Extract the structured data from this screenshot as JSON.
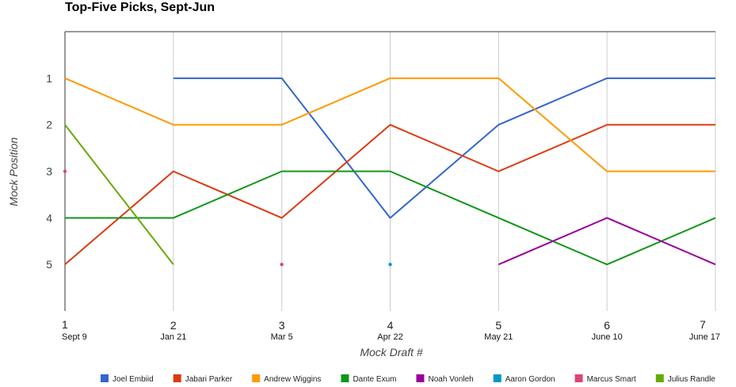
{
  "chart_data": {
    "type": "line",
    "title": "Top-Five Picks, Sept-Jun",
    "xlabel": "Mock Draft #",
    "ylabel": "Mock Position",
    "x": [
      1,
      2,
      3,
      4,
      5,
      6,
      7
    ],
    "x_dates": [
      "Sept 9",
      "Jan 21",
      "Mar 5",
      "Apr 22",
      "May 21",
      "June 10",
      "June 17"
    ],
    "y_ticks": [
      1,
      2,
      3,
      4,
      5
    ],
    "ylim": [
      6,
      0
    ],
    "y_reversed": true,
    "grid": "vertical",
    "legend_position": "bottom",
    "series": [
      {
        "name": "Joel Embiid",
        "color": "#3366cc",
        "values": [
          null,
          1,
          1,
          4,
          2,
          1,
          1
        ]
      },
      {
        "name": "Jabari Parker",
        "color": "#dc3912",
        "values": [
          5,
          3,
          4,
          2,
          3,
          2,
          2
        ]
      },
      {
        "name": "Andrew Wiggins",
        "color": "#ff9900",
        "values": [
          1,
          2,
          2,
          1,
          1,
          3,
          3
        ]
      },
      {
        "name": "Dante Exum",
        "color": "#109618",
        "values": [
          4,
          4,
          3,
          3,
          4,
          5,
          4
        ]
      },
      {
        "name": "Noah Vonleh",
        "color": "#990099",
        "values": [
          null,
          null,
          null,
          null,
          5,
          4,
          5
        ]
      },
      {
        "name": "Aaron Gordon",
        "color": "#0099c6",
        "values": [
          null,
          null,
          null,
          5,
          null,
          null,
          null
        ]
      },
      {
        "name": "Marcus Smart",
        "color": "#dd4477",
        "values": [
          3,
          null,
          5,
          null,
          null,
          null,
          null
        ]
      },
      {
        "name": "Julius Randle",
        "color": "#66aa00",
        "values": [
          2,
          5,
          null,
          null,
          null,
          null,
          null
        ]
      }
    ]
  }
}
